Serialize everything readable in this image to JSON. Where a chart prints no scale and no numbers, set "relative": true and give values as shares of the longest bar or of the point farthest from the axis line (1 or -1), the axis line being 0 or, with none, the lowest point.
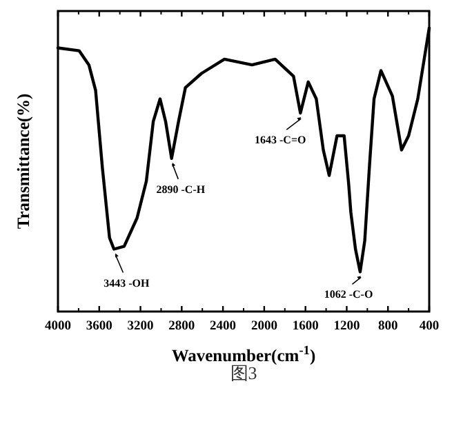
{
  "chart_data": {
    "type": "line",
    "relative": true,
    "xlabel": "Wavenumber(cm$^{-1}$)",
    "ylabel": "Transmittance(%)",
    "xlim": [
      4000,
      400
    ],
    "xticks": [
      4000,
      3600,
      3200,
      2800,
      2400,
      2000,
      1600,
      1200,
      800,
      400
    ],
    "tick_labels": "x",
    "series": [
      {
        "color": "#000000",
        "x": [
          4000,
          3795,
          3700,
          3635,
          3570,
          3500,
          3457,
          3358,
          3233,
          3143,
          3076,
          3010,
          2956,
          2898,
          2831,
          2764,
          2608,
          2386,
          2118,
          1894,
          1716,
          1649,
          1573,
          1495,
          1427,
          1370,
          1294,
          1225,
          1181,
          1160,
          1115,
          1070,
          1025,
          980,
          935,
          868,
          757,
          668,
          600,
          511,
          400
        ],
        "values": [
          0.93,
          0.92,
          0.87,
          0.78,
          0.51,
          0.26,
          0.22,
          0.23,
          0.33,
          0.46,
          0.67,
          0.75,
          0.67,
          0.54,
          0.67,
          0.79,
          0.84,
          0.89,
          0.87,
          0.89,
          0.83,
          0.7,
          0.81,
          0.75,
          0.57,
          0.48,
          0.62,
          0.62,
          0.45,
          0.35,
          0.22,
          0.14,
          0.25,
          0.51,
          0.75,
          0.85,
          0.76,
          0.57,
          0.62,
          0.75,
          1
        ]
      }
    ],
    "annotations": [
      {
        "text": "3443 -OH",
        "x": 3443,
        "y": 0.22
      },
      {
        "text": "2890 -C-H",
        "x": 2890,
        "y": 0.54
      },
      {
        "text": "1643 -C=O",
        "x": 1643,
        "y": 0.7
      },
      {
        "text": "1062 -C-O",
        "x": 1062,
        "y": 0.14
      },
      "图3"
    ]
  }
}
